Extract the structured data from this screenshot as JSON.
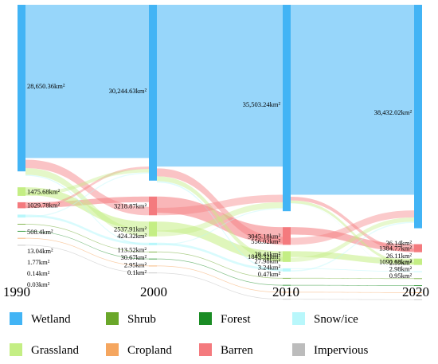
{
  "chart_data": {
    "type": "sankey",
    "years": [
      "1990",
      "2000",
      "2010",
      "2020"
    ],
    "classes": [
      "Wetland",
      "Grassland",
      "Barren",
      "Snow/ice",
      "Shrub",
      "Forest",
      "Cropland",
      "Impervious"
    ],
    "colors": {
      "Wetland": "#42b4f5",
      "Grassland": "#c4ee84",
      "Barren": "#f47a7e",
      "Snow/ice": "#b8f7fb",
      "Shrub": "#6aa72a",
      "Forest": "#1a8c24",
      "Cropland": "#f5a65f",
      "Impervious": "#bcbcbc"
    },
    "nodes": [
      {
        "year": "1990",
        "class": "Wetland",
        "area": 28650.36,
        "label": "28,650.36km²"
      },
      {
        "year": "1990",
        "class": "Grassland",
        "area": 1475.68,
        "label": "1475.68km²"
      },
      {
        "year": "1990",
        "class": "Barren",
        "area": 1029.78,
        "label": "1029.78km²"
      },
      {
        "year": "1990",
        "class": "Snow/ice",
        "area": 508.4,
        "label": "508.4km²"
      },
      {
        "year": "1990",
        "class": "Shrub",
        "area": 13.04,
        "label": "13.04km²"
      },
      {
        "year": "1990",
        "class": "Forest",
        "area": 1.77,
        "label": "1.77km²"
      },
      {
        "year": "1990",
        "class": "Cropland",
        "area": 0.14,
        "label": "0.14km²"
      },
      {
        "year": "1990",
        "class": "Impervious",
        "area": 0.03,
        "label": "0.03km²"
      },
      {
        "year": "2000",
        "class": "Wetland",
        "area": 30244.63,
        "label": "30,244.63km²"
      },
      {
        "year": "2000",
        "class": "Barren",
        "area": 3218.87,
        "label": "3218.87km²"
      },
      {
        "year": "2000",
        "class": "Grassland",
        "area": 2537.91,
        "label": "2537.91km²"
      },
      {
        "year": "2000",
        "class": "Snow/ice",
        "area": 424.32,
        "label": "424.32km²"
      },
      {
        "year": "2000",
        "class": "Shrub",
        "area": 113.52,
        "label": "113.52km²"
      },
      {
        "year": "2000",
        "class": "Forest",
        "area": 30.67,
        "label": "30.67km²"
      },
      {
        "year": "2000",
        "class": "Cropland",
        "area": 2.95,
        "label": "2.95km²"
      },
      {
        "year": "2000",
        "class": "Impervious",
        "area": 0.1,
        "label": "0.1km²"
      },
      {
        "year": "2010",
        "class": "Wetland",
        "area": 35503.24,
        "label": "35,503.24km²"
      },
      {
        "year": "2010",
        "class": "Barren",
        "area": 3045.18,
        "label": "3045.18km²"
      },
      {
        "year": "2010",
        "class": "Grassland",
        "area": 1843.32,
        "label": "1843.32km²"
      },
      {
        "year": "2010",
        "class": "Snow/ice",
        "area": 556.02,
        "label": "556.02km²"
      },
      {
        "year": "2010",
        "class": "Shrub",
        "area": 28.41,
        "label": "28.41km²"
      },
      {
        "year": "2010",
        "class": "Forest",
        "area": 27.98,
        "label": "27.98km²"
      },
      {
        "year": "2010",
        "class": "Cropland",
        "area": 3.24,
        "label": "3.24km²"
      },
      {
        "year": "2010",
        "class": "Impervious",
        "area": 0.47,
        "label": "0.47km²"
      },
      {
        "year": "2020",
        "class": "Wetland",
        "area": 38432.02,
        "label": "38,432.02km²"
      },
      {
        "year": "2020",
        "class": "Barren",
        "area": 1384.77,
        "label": "1384.77km²"
      },
      {
        "year": "2020",
        "class": "Grassland",
        "area": 1090.63,
        "label": "1090.63km²"
      },
      {
        "year": "2020",
        "class": "Snow/ice",
        "area": 36.14,
        "label": "36.14km²"
      },
      {
        "year": "2020",
        "class": "Shrub",
        "area": 26.11,
        "label": "26.11km²"
      },
      {
        "year": "2020",
        "class": "Forest",
        "area": 2.59,
        "label": "2.59km²"
      },
      {
        "year": "2020",
        "class": "Cropland",
        "area": 2.98,
        "label": "2.98km²"
      },
      {
        "year": "2020",
        "class": "Impervious",
        "area": 0.95,
        "label": "0.95km²"
      }
    ],
    "legend": [
      "Wetland",
      "Shrub",
      "Forest",
      "Snow/ice",
      "Grassland",
      "Cropland",
      "Barren",
      "Impervious"
    ],
    "legend_position": "bottom"
  }
}
